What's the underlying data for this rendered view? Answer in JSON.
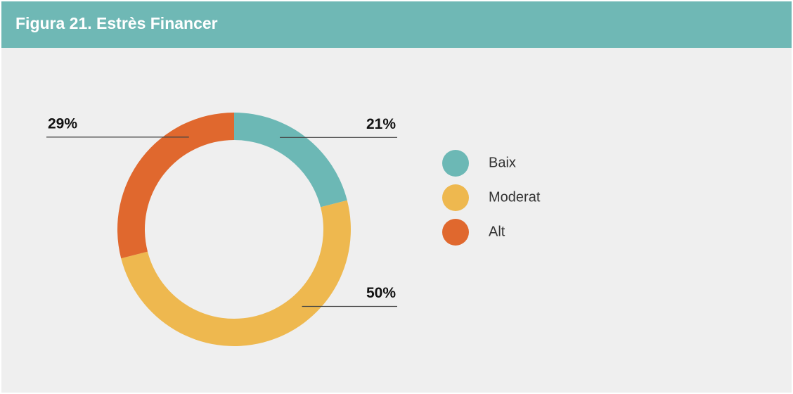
{
  "chart_data": {
    "type": "pie",
    "title": "Figura 21. Estrès Financer",
    "categories": [
      "Baix",
      "Moderat",
      "Alt"
    ],
    "values": [
      21,
      50,
      29
    ],
    "value_labels": [
      "21%",
      "50%",
      "29%"
    ],
    "colors": [
      "#6cb8b5",
      "#eeb84f",
      "#e0682e"
    ],
    "donut": true,
    "legend": "right"
  }
}
